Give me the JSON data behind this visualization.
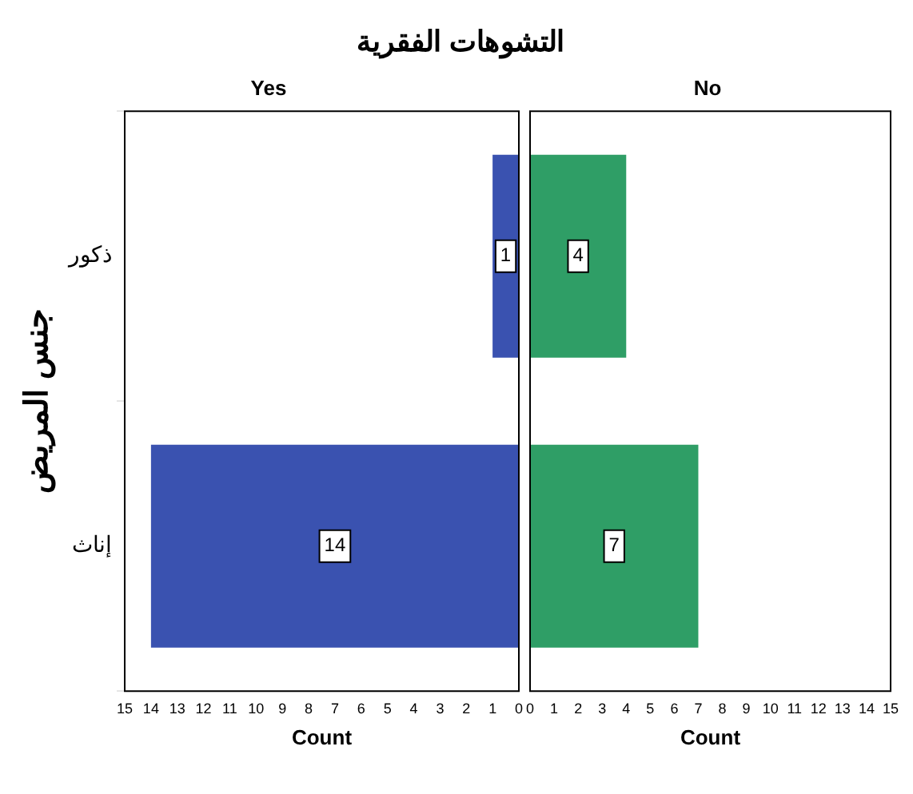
{
  "chart_data": [
    {
      "type": "bar",
      "orientation": "horizontal",
      "title": "التشوهات الفقرية",
      "subtitle": "Yes",
      "categories": [
        "ذكور",
        "إناث"
      ],
      "values": [
        1,
        14
      ],
      "color": "#3a52b0",
      "xlim": [
        15,
        0
      ],
      "xticks": [
        15,
        14,
        13,
        12,
        11,
        10,
        9,
        8,
        7,
        6,
        5,
        4,
        3,
        2,
        1,
        0
      ],
      "xlabel": "Count",
      "ylabel": "جنس المريض",
      "data_labels": true,
      "grid": false,
      "legend": false
    },
    {
      "type": "bar",
      "orientation": "horizontal",
      "subtitle": "No",
      "categories": [
        null,
        null
      ],
      "values": [
        4,
        7
      ],
      "color": "#2f9e66",
      "xlim": [
        0,
        15
      ],
      "xticks": [
        0,
        1,
        2,
        3,
        4,
        5,
        6,
        7,
        8,
        9,
        10,
        11,
        12,
        13,
        14,
        15
      ],
      "xlabel": "Count",
      "data_labels": true,
      "grid": false,
      "legend": false,
      "tick_labels": "x"
    }
  ]
}
